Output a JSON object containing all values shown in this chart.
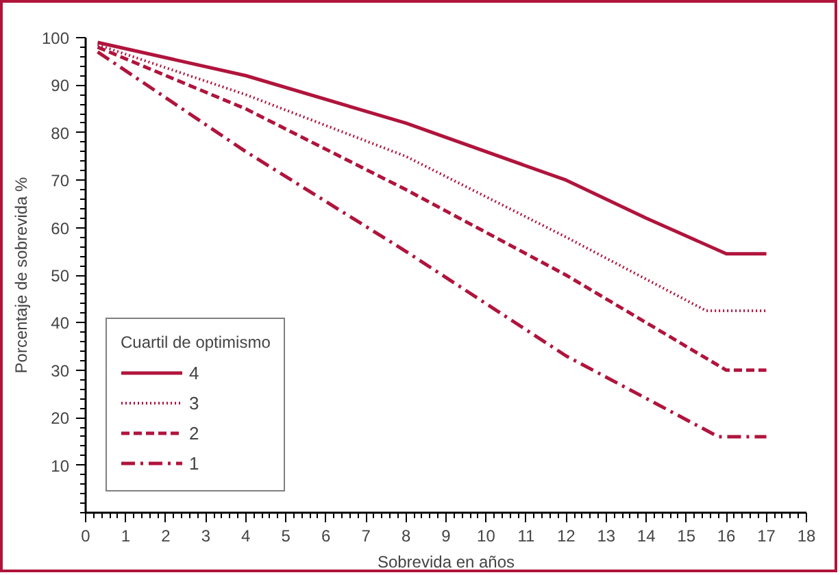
{
  "chart_data": {
    "type": "line",
    "xlabel": "Sobrevida en años",
    "ylabel": "Porcentaje de sobrevida %",
    "legend_title": "Cuartil de optimismo",
    "xlim": [
      0,
      18
    ],
    "ylim": [
      0,
      100
    ],
    "xticks": [
      0,
      1,
      2,
      3,
      4,
      5,
      6,
      7,
      8,
      9,
      10,
      11,
      12,
      13,
      14,
      15,
      16,
      17,
      18
    ],
    "yticks": [
      10,
      20,
      30,
      40,
      50,
      60,
      70,
      80,
      90,
      100
    ],
    "grid": false,
    "legend": "bottom left",
    "marker": "none",
    "series": [
      {
        "name": "4",
        "color": "#b0143c",
        "line_style": "solid",
        "x": [
          0.3,
          4,
          8,
          12,
          14,
          16,
          17
        ],
        "values": [
          99,
          92,
          82,
          70,
          62,
          54.5,
          54.5
        ]
      },
      {
        "name": "3",
        "color": "#b0143c",
        "line_style": "dotted",
        "x": [
          0.3,
          4,
          8,
          12,
          15.5,
          17
        ],
        "values": [
          98.5,
          88,
          75,
          58,
          42.5,
          42.5
        ]
      },
      {
        "name": "2",
        "color": "#b0143c",
        "line_style": "dashed",
        "x": [
          0.3,
          4,
          8,
          12,
          16,
          17
        ],
        "values": [
          98,
          85,
          68,
          50,
          30,
          30
        ]
      },
      {
        "name": "1",
        "color": "#b0143c",
        "line_style": "dashdot",
        "x": [
          0.3,
          4,
          8,
          12,
          15.8,
          17
        ],
        "values": [
          97,
          76,
          55,
          33,
          16,
          16
        ]
      }
    ]
  }
}
